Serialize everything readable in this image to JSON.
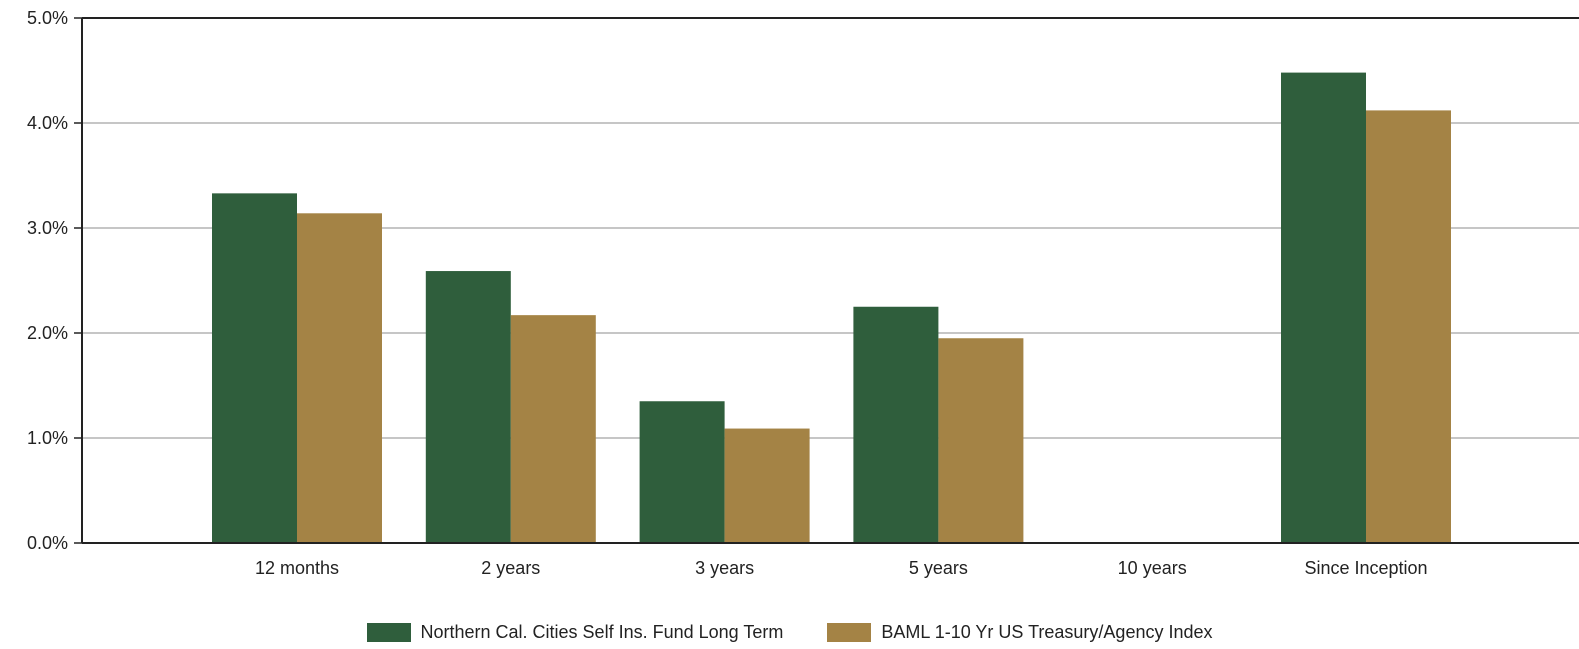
{
  "chart_data": {
    "type": "bar",
    "title": "",
    "xlabel": "",
    "ylabel": "",
    "ylim": [
      0,
      5
    ],
    "yticks": [
      "0.0%",
      "1.0%",
      "2.0%",
      "3.0%",
      "4.0%",
      "5.0%"
    ],
    "grid": true,
    "legend_position": "bottom-center",
    "categories": [
      "12 months",
      "2 years",
      "3 years",
      "5 years",
      "10 years",
      "Since Inception"
    ],
    "series": [
      {
        "name": "Northern Cal. Cities Self Ins. Fund Long Term",
        "color": "#2f5e3c",
        "values": [
          3.33,
          2.59,
          1.35,
          2.25,
          null,
          4.48
        ]
      },
      {
        "name": "BAML 1-10 Yr US Treasury/Agency Index",
        "color": "#a48345",
        "values": [
          3.14,
          2.17,
          1.09,
          1.95,
          null,
          4.12
        ]
      }
    ]
  }
}
